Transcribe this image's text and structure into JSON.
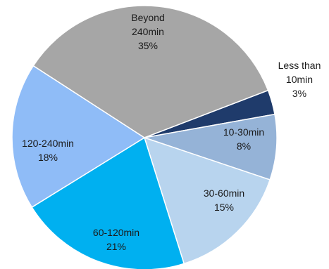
{
  "chart_data": {
    "type": "pie",
    "title": "",
    "slices": [
      {
        "lines": [
          "Less than",
          "10min",
          "3%"
        ],
        "label": "Less than 10min",
        "value": 3,
        "color": "#1f3b6b"
      },
      {
        "lines": [
          "10-30min",
          "8%"
        ],
        "label": "10-30min",
        "value": 8,
        "color": "#95b3d7"
      },
      {
        "lines": [
          "30-60min",
          "15%"
        ],
        "label": "30-60min",
        "value": 15,
        "color": "#b8d4ee"
      },
      {
        "lines": [
          "60-120min",
          "21%"
        ],
        "label": "60-120min",
        "value": 21,
        "color": "#00b0f0"
      },
      {
        "lines": [
          "120-240min",
          "18%"
        ],
        "label": "120-240min",
        "value": 18,
        "color": "#8fbcf7"
      },
      {
        "lines": [
          "Beyond",
          "240min",
          "35%"
        ],
        "label": "Beyond 240min",
        "value": 35,
        "color": "#a6a6a6"
      }
    ]
  }
}
